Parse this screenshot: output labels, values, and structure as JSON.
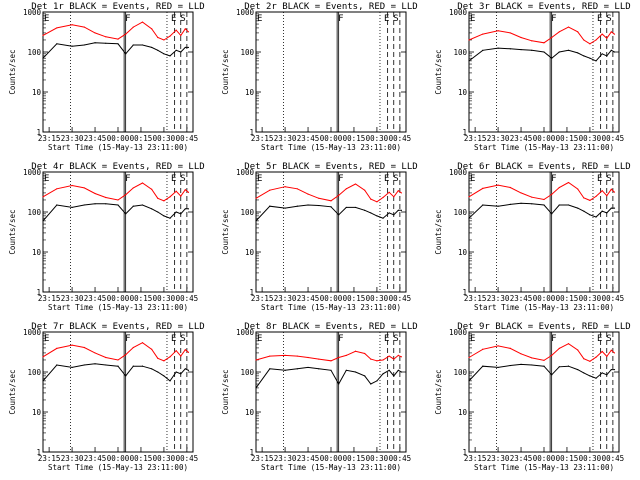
{
  "figure": {
    "background": "#ffffff",
    "black_color": "#000000",
    "red_color": "#ff0000"
  },
  "chart_data": {
    "type": "line",
    "yscale": "log",
    "ylim": [
      1,
      1000
    ],
    "ylabel": "Counts/sec",
    "xlabel": "Start Time (15-May-13 23:11:00)",
    "x_tick_labels": [
      "23:15",
      "23:30",
      "23:45",
      "00:00",
      "00:15",
      "00:30",
      "00:45"
    ],
    "y_tick_labels": [
      "1",
      "10",
      "100",
      "1000"
    ],
    "event_markers": [
      "E",
      "F",
      "E",
      "S"
    ],
    "x_common": [
      "23:11",
      "23:20",
      "23:30",
      "23:38",
      "23:45",
      "23:52",
      "00:00",
      "00:05",
      "00:10",
      "00:16",
      "00:22",
      "00:26",
      "00:30",
      "00:34",
      "00:38",
      "00:41",
      "00:44",
      "00:46"
    ],
    "panels": [
      {
        "title": "Det 1r BLACK = Events, RED = LLD",
        "series": [
          {
            "name": "BLACK = Events",
            "color": "#000000",
            "values": [
              70,
              160,
              140,
              150,
              170,
              165,
              160,
              90,
              150,
              150,
              130,
              110,
              90,
              80,
              110,
              100,
              130,
              130
            ]
          },
          {
            "name": "RED = LLD",
            "color": "#ff0000",
            "values": [
              260,
              400,
              480,
              420,
              300,
              240,
              210,
              280,
              420,
              560,
              380,
              230,
              200,
              250,
              350,
              260,
              380,
              320
            ]
          }
        ]
      },
      {
        "title": "Det 2r BLACK = Events, RED = LLD",
        "series": []
      },
      {
        "title": "Det 3r BLACK = Events, RED = LLD",
        "series": [
          {
            "name": "BLACK = Events",
            "color": "#000000",
            "values": [
              60,
              110,
              125,
              120,
              115,
              110,
              100,
              70,
              100,
              110,
              95,
              80,
              70,
              60,
              90,
              80,
              110,
              100
            ]
          },
          {
            "name": "RED = LLD",
            "color": "#ff0000",
            "values": [
              200,
              280,
              340,
              300,
              230,
              190,
              170,
              230,
              320,
              420,
              320,
              200,
              160,
              200,
              280,
              220,
              320,
              280
            ]
          }
        ]
      },
      {
        "title": "Det 4r BLACK = Events, RED = LLD",
        "series": [
          {
            "name": "BLACK = Events",
            "color": "#000000",
            "values": [
              60,
              150,
              130,
              150,
              160,
              160,
              150,
              90,
              140,
              150,
              120,
              100,
              80,
              70,
              100,
              90,
              120,
              120
            ]
          },
          {
            "name": "RED = LLD",
            "color": "#ff0000",
            "values": [
              240,
              380,
              460,
              400,
              290,
              230,
              200,
              270,
              400,
              530,
              370,
              220,
              190,
              240,
              330,
              250,
              360,
              310
            ]
          }
        ]
      },
      {
        "title": "Det 5r BLACK = Events, RED = LLD",
        "series": [
          {
            "name": "BLACK = Events",
            "color": "#000000",
            "values": [
              60,
              140,
              125,
              140,
              150,
              145,
              135,
              85,
              130,
              130,
              110,
              95,
              80,
              70,
              95,
              85,
              110,
              110
            ]
          },
          {
            "name": "RED = LLD",
            "color": "#ff0000",
            "values": [
              220,
              350,
              430,
              380,
              280,
              220,
              190,
              260,
              380,
              500,
              350,
              210,
              180,
              230,
              310,
              240,
              340,
              300
            ]
          }
        ]
      },
      {
        "title": "Det 6r BLACK = Events, RED = LLD",
        "series": [
          {
            "name": "BLACK = Events",
            "color": "#000000",
            "values": [
              70,
              150,
              140,
              155,
              165,
              160,
              150,
              90,
              150,
              150,
              125,
              105,
              85,
              75,
              105,
              95,
              125,
              125
            ]
          },
          {
            "name": "RED = LLD",
            "color": "#ff0000",
            "values": [
              240,
              390,
              470,
              410,
              300,
              235,
              205,
              275,
              410,
              545,
              375,
              225,
              195,
              245,
              340,
              255,
              370,
              315
            ]
          }
        ]
      },
      {
        "title": "Det 7r BLACK = Events, RED = LLD",
        "series": [
          {
            "name": "BLACK = Events",
            "color": "#000000",
            "values": [
              60,
              150,
              130,
              150,
              160,
              150,
              140,
              80,
              140,
              140,
              120,
              100,
              80,
              60,
              100,
              90,
              120,
              110
            ]
          },
          {
            "name": "RED = LLD",
            "color": "#ff0000",
            "values": [
              240,
              390,
              470,
              410,
              300,
              230,
              200,
              270,
              410,
              540,
              370,
              220,
              190,
              240,
              340,
              250,
              360,
              310
            ]
          }
        ]
      },
      {
        "title": "Det 8r BLACK = Events, RED = LLD",
        "series": [
          {
            "name": "BLACK = Events",
            "color": "#000000",
            "values": [
              40,
              120,
              110,
              120,
              130,
              120,
              110,
              50,
              110,
              100,
              80,
              50,
              60,
              90,
              110,
              80,
              110,
              100
            ]
          },
          {
            "name": "RED = LLD",
            "color": "#ff0000",
            "values": [
              200,
              250,
              260,
              250,
              230,
              210,
              190,
              230,
              260,
              330,
              290,
              210,
              190,
              200,
              250,
              210,
              260,
              240
            ]
          }
        ]
      },
      {
        "title": "Det 9r BLACK = Events, RED = LLD",
        "series": [
          {
            "name": "BLACK = Events",
            "color": "#000000",
            "values": [
              60,
              140,
              130,
              145,
              155,
              150,
              140,
              85,
              135,
              140,
              115,
              95,
              80,
              70,
              95,
              85,
              115,
              115
            ]
          },
          {
            "name": "RED = LLD",
            "color": "#ff0000",
            "values": [
              230,
              370,
              450,
              390,
              285,
              225,
              195,
              260,
              390,
              510,
              355,
              215,
              185,
              235,
              325,
              245,
              350,
              300
            ]
          }
        ]
      }
    ]
  }
}
